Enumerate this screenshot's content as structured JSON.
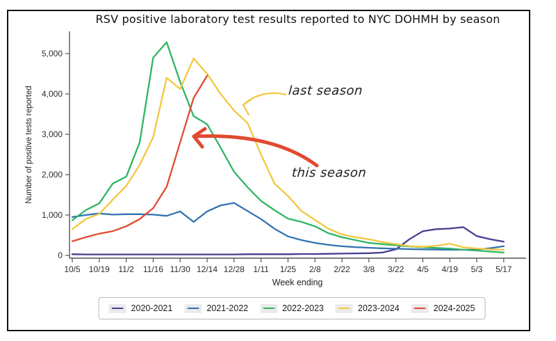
{
  "figure": {
    "title": "RSV positive laboratory test results reported to NYC DOHMH by season"
  },
  "chart_data": {
    "type": "line",
    "title": "RSV positive laboratory test results reported to NYC DOHMH by season",
    "xlabel": "Week ending",
    "ylabel": "Number of positive tests reported",
    "x_tick_labels": [
      "10/5",
      "10/19",
      "11/2",
      "11/16",
      "11/30",
      "12/14",
      "12/28",
      "1/11",
      "1/25",
      "2/8",
      "2/22",
      "3/8",
      "3/22",
      "4/5",
      "4/19",
      "5/3",
      "5/17"
    ],
    "weeks_per_tick": 2,
    "points_are_weekly": true,
    "y_ticks": [
      0,
      1000,
      2000,
      3000,
      4000,
      5000
    ],
    "y_tick_labels": [
      "0",
      "1,000",
      "2,000",
      "3,000",
      "4,000",
      "5,000"
    ],
    "ylim": [
      0,
      5500
    ],
    "grid": false,
    "legend_position": "bottom-center",
    "series": [
      {
        "name": "2020-2021",
        "color": "#453d8f",
        "values": [
          30,
          25,
          25,
          25,
          25,
          25,
          25,
          25,
          25,
          25,
          25,
          25,
          25,
          30,
          30,
          30,
          30,
          35,
          35,
          40,
          45,
          50,
          55,
          70,
          150,
          400,
          600,
          650,
          665,
          700,
          480,
          400,
          340
        ]
      },
      {
        "name": "2021-2022",
        "color": "#3272b2",
        "values": [
          950,
          1000,
          1040,
          1010,
          1020,
          1020,
          1010,
          980,
          1090,
          830,
          1090,
          1240,
          1300,
          1100,
          900,
          660,
          470,
          380,
          310,
          260,
          225,
          205,
          190,
          175,
          165,
          155,
          150,
          145,
          140,
          140,
          145,
          180,
          230
        ]
      },
      {
        "name": "2022-2023",
        "color": "#2eb564",
        "values": [
          870,
          1120,
          1290,
          1780,
          1950,
          2800,
          4900,
          5280,
          4300,
          3450,
          3250,
          2670,
          2070,
          1690,
          1350,
          1120,
          910,
          830,
          720,
          550,
          450,
          380,
          310,
          280,
          250,
          220,
          200,
          185,
          170,
          140,
          120,
          95,
          70
        ]
      },
      {
        "name": "2023-2024",
        "color": "#f2c73e",
        "values": [
          650,
          900,
          1030,
          1380,
          1720,
          2240,
          2930,
          4400,
          4120,
          4880,
          4500,
          4000,
          3590,
          3280,
          2500,
          1780,
          1470,
          1100,
          880,
          660,
          520,
          450,
          400,
          330,
          280,
          230,
          210,
          240,
          290,
          200,
          170,
          150,
          140
        ]
      },
      {
        "name": "2024-2025",
        "color": "#e2492f",
        "values": [
          350,
          450,
          540,
          600,
          720,
          900,
          1170,
          1700,
          2800,
          3900,
          4450
        ]
      }
    ]
  },
  "annotations": [
    {
      "text": "last season",
      "arrow_color": "#f2c73e",
      "points_to": "2023-2024"
    },
    {
      "text": "this season",
      "arrow_color": "#e2492f",
      "points_to": "2024-2025"
    }
  ]
}
